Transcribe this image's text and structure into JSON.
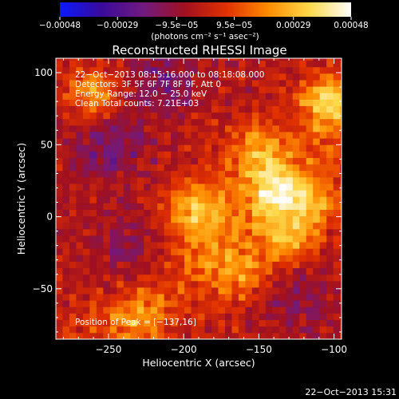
{
  "chart_data": {
    "type": "heatmap",
    "title": "Reconstructed RHESSI Image",
    "xlabel": "Heliocentric X (arcsec)",
    "ylabel": "Heliocentric Y (arcsec)",
    "xlim": [
      -285,
      -95
    ],
    "ylim": [
      -85,
      110
    ],
    "x_ticks": [
      -250,
      -200,
      -150,
      -100
    ],
    "y_ticks": [
      -50,
      0,
      50,
      100
    ],
    "x_tick_labels": [
      "−250",
      "−200",
      "−150",
      "−100"
    ],
    "y_tick_labels": [
      "−50",
      "0",
      "50",
      "100"
    ],
    "colorbar": {
      "range": [
        -0.00048,
        0.00048
      ],
      "tick_values": [
        -0.00048,
        -0.00029,
        -9.5e-05,
        9.5e-05,
        0.00029,
        0.00048
      ],
      "tick_labels": [
        "−0.00048",
        "−0.00029",
        "−9.5e−05",
        "9.5e−05",
        "0.00029",
        "0.00048"
      ],
      "units": "(photons cm⁻² s⁻¹ asec⁻²)",
      "colormap": [
        "#0a1aff",
        "#3a0a9a",
        "#701a80",
        "#a01020",
        "#e03000",
        "#ff8c00",
        "#ffd84a",
        "#ffffff"
      ]
    },
    "info_lines": [
      "22−Oct−2013 08:15:16.000 to 08:18:08.000",
      "Detectors: 3F 5F 6F 7F 8F 9F, Att 0",
      "Energy Range: 12.0 − 25.0 keV",
      "Clean     Total counts: 7.21E+03"
    ],
    "peak_label": "Position of Peak = [−137,16]",
    "peak_position": [
      -137,
      16
    ],
    "hot_regions": [
      {
        "x": -137,
        "y": 16,
        "intensity": 1.0
      },
      {
        "x": -105,
        "y": 80,
        "intensity": 0.9
      },
      {
        "x": -150,
        "y": 45,
        "intensity": 0.7
      },
      {
        "x": -130,
        "y": -15,
        "intensity": 0.75
      },
      {
        "x": -195,
        "y": 5,
        "intensity": 0.6
      },
      {
        "x": -160,
        "y": -40,
        "intensity": 0.55
      },
      {
        "x": -260,
        "y": 85,
        "intensity": 0.7
      },
      {
        "x": -110,
        "y": 10,
        "intensity": 0.55
      },
      {
        "x": -230,
        "y": -70,
        "intensity": 0.45
      }
    ],
    "cold_regions": [
      {
        "x": -250,
        "y": 50,
        "intensity": 0.6
      },
      {
        "x": -215,
        "y": 95,
        "intensity": 0.5
      },
      {
        "x": -235,
        "y": -25,
        "intensity": 0.45
      },
      {
        "x": -125,
        "y": -55,
        "intensity": 0.4
      }
    ]
  },
  "timestamp": "22−Oct−2013 15:31"
}
